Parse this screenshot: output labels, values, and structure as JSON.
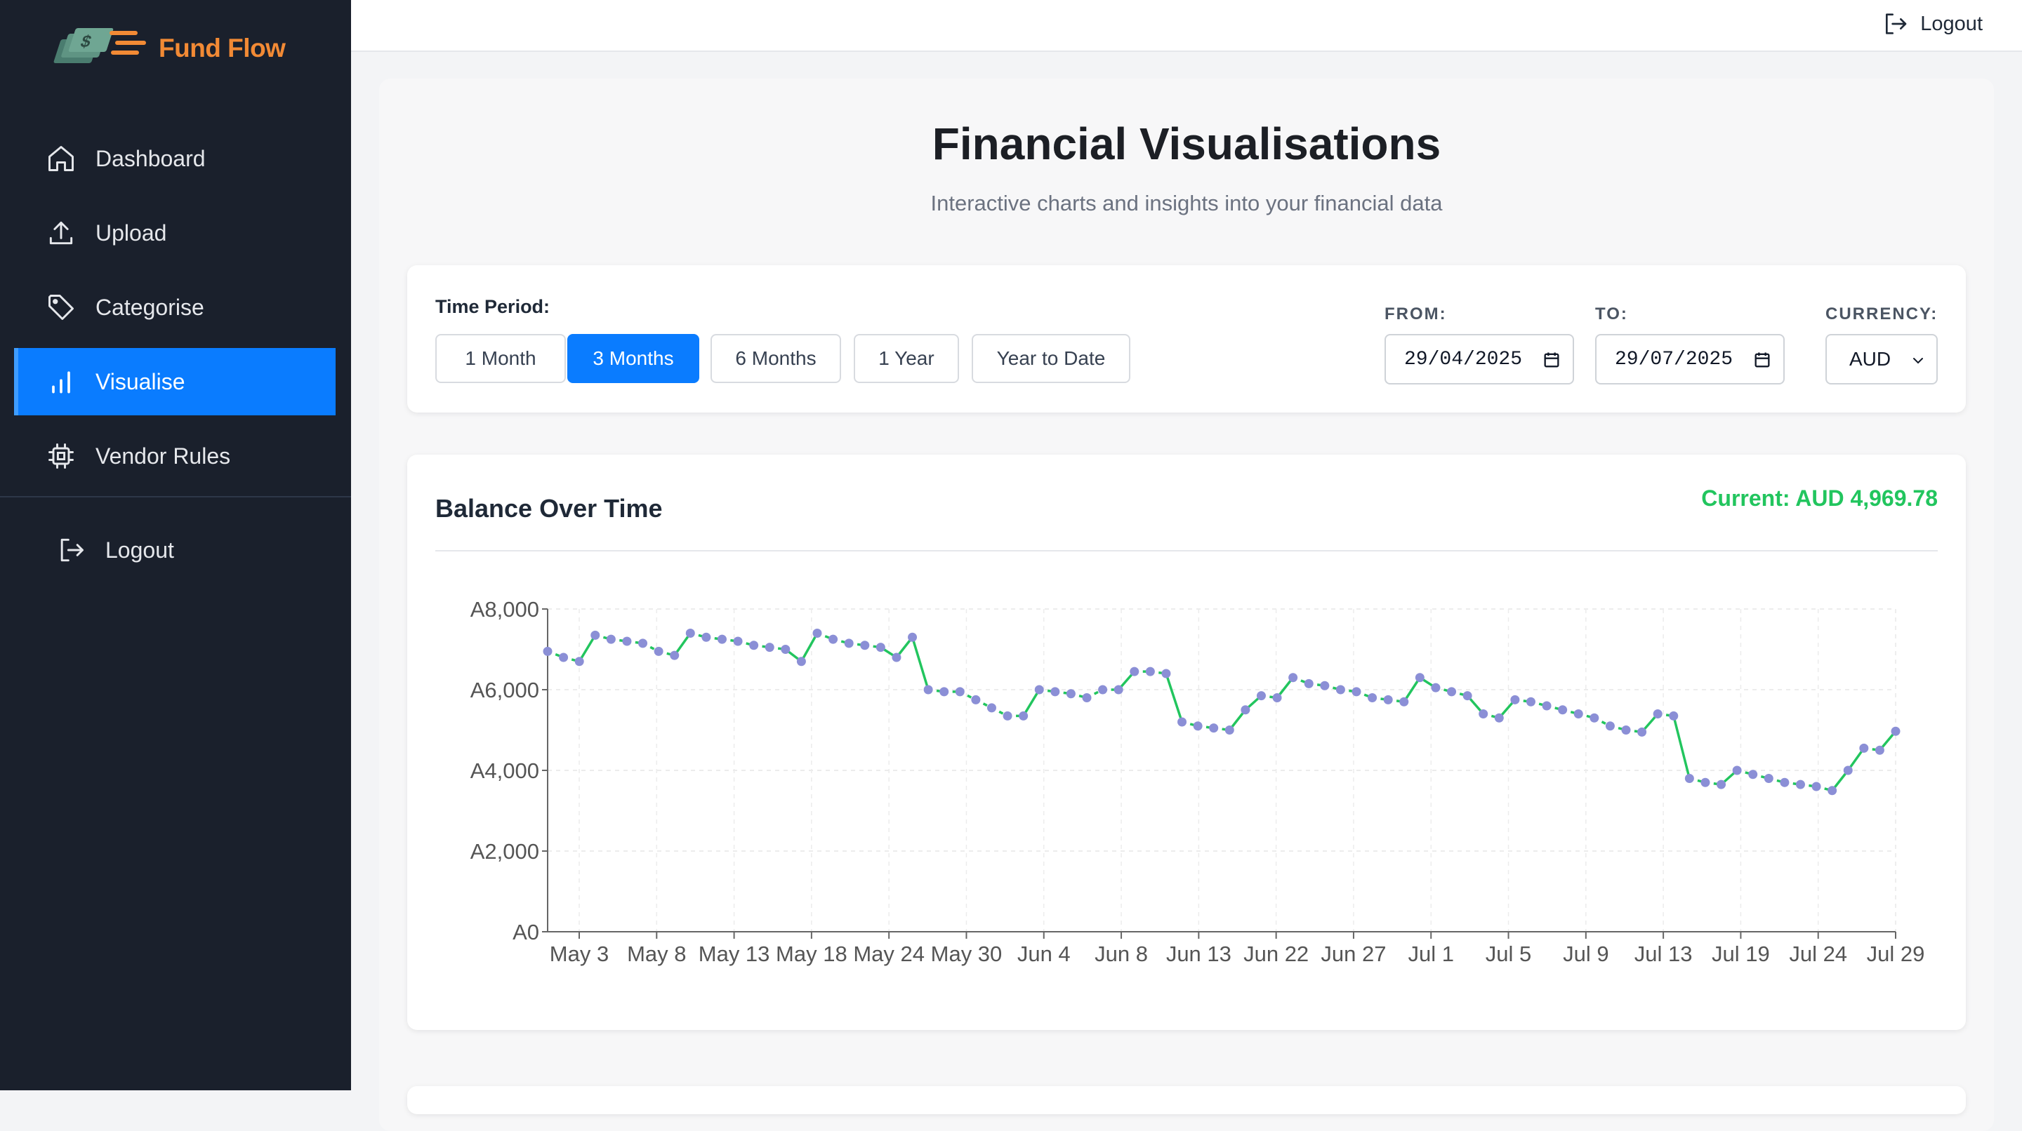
{
  "brand": {
    "name": "Fund Flow"
  },
  "sidebar": {
    "items": [
      {
        "label": "Dashboard",
        "icon": "home-icon"
      },
      {
        "label": "Upload",
        "icon": "upload-icon"
      },
      {
        "label": "Categorise",
        "icon": "tag-icon"
      },
      {
        "label": "Visualise",
        "icon": "bar-chart-icon",
        "active": true
      },
      {
        "label": "Vendor Rules",
        "icon": "chip-icon"
      }
    ],
    "logout_label": "Logout"
  },
  "topbar": {
    "logout_label": "Logout"
  },
  "page": {
    "title": "Financial Visualisations",
    "subtitle": "Interactive charts and insights into your financial data"
  },
  "filters": {
    "time_period_label": "Time Period:",
    "periods": [
      "1 Month",
      "3 Months",
      "6 Months",
      "1 Year",
      "Year to Date"
    ],
    "active_period": "3 Months",
    "from_label": "FROM:",
    "from_value": "29/04/2025",
    "to_label": "TO:",
    "to_value": "29/07/2025",
    "currency_label": "CURRENCY:",
    "currency_value": "AUD"
  },
  "colors": {
    "accent": "#0a7cff",
    "brand": "#f28a35",
    "positive": "#22c55e",
    "point": "#8b8fd6",
    "sidebar_bg": "#1a202c"
  },
  "chart_data": {
    "type": "line",
    "title": "Balance Over Time",
    "current_label": "Current: AUD 4,969.78",
    "ylim": [
      0,
      8000
    ],
    "y_ticks": [
      "A0",
      "A2,000",
      "A4,000",
      "A6,000",
      "A8,000"
    ],
    "x_ticks": [
      "May 3",
      "May 8",
      "May 13",
      "May 18",
      "May 24",
      "May 30",
      "Jun 4",
      "Jun 8",
      "Jun 13",
      "Jun 22",
      "Jun 27",
      "Jul 1",
      "Jul 5",
      "Jul 9",
      "Jul 13",
      "Jul 19",
      "Jul 24",
      "Jul 29"
    ],
    "grid": true,
    "series": [
      {
        "values": [
          6950,
          6800,
          6700,
          7350,
          7250,
          7200,
          7150,
          6950,
          6850,
          7400,
          7300,
          7250,
          7200,
          7100,
          7050,
          7000,
          6700,
          7400,
          7250,
          7150,
          7100,
          7050,
          6800,
          7300,
          6000,
          5950,
          5950,
          5750,
          5550,
          5350,
          5350,
          6000,
          5950,
          5900,
          5800,
          6000,
          6000,
          6450,
          6450,
          6400,
          5200,
          5100,
          5050,
          5000,
          5500,
          5850,
          5800,
          6300,
          6150,
          6100,
          6000,
          5950,
          5800,
          5750,
          5700,
          6300,
          6050,
          5950,
          5850,
          5400,
          5300,
          5750,
          5700,
          5600,
          5500,
          5400,
          5300,
          5100,
          5000,
          4950,
          5400,
          5350,
          3800,
          3700,
          3650,
          4000,
          3900,
          3800,
          3700,
          3650,
          3600,
          3500,
          4000,
          4550,
          4500,
          4970
        ]
      }
    ]
  }
}
